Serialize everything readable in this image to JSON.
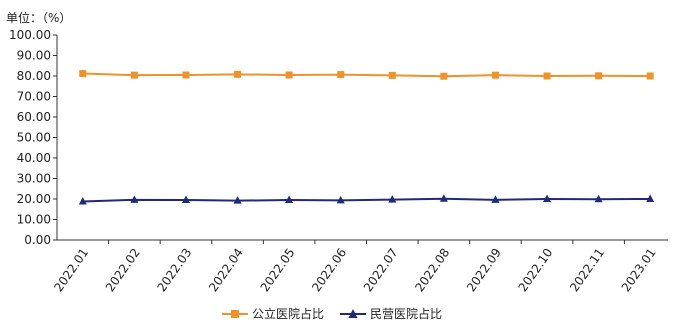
{
  "chart_data": {
    "type": "line",
    "unit_label": "单位：（%）",
    "categories": [
      "2022.01",
      "2022.02",
      "2022.03",
      "2022.04",
      "2022.05",
      "2022.06",
      "2022.07",
      "2022.08",
      "2022.09",
      "2022.10",
      "2022.11",
      "2023.01"
    ],
    "series": [
      {
        "name": "公立医院占比",
        "color": "#f0912a",
        "marker": "square",
        "values": [
          81.2,
          80.4,
          80.5,
          80.8,
          80.5,
          80.7,
          80.3,
          79.9,
          80.4,
          80.0,
          80.1,
          80.0
        ]
      },
      {
        "name": "民营医院占比",
        "color": "#1f2a7a",
        "marker": "triangle",
        "values": [
          18.8,
          19.6,
          19.5,
          19.2,
          19.5,
          19.3,
          19.7,
          20.1,
          19.6,
          20.0,
          19.9,
          20.0
        ]
      }
    ],
    "yticks": [
      "100.00",
      "90.00",
      "80.00",
      "70.00",
      "60.00",
      "50.00",
      "40.00",
      "30.00",
      "20.00",
      "10.00",
      "0.00"
    ],
    "ylim": [
      0,
      100
    ],
    "grid": false,
    "legend": "bottom"
  }
}
